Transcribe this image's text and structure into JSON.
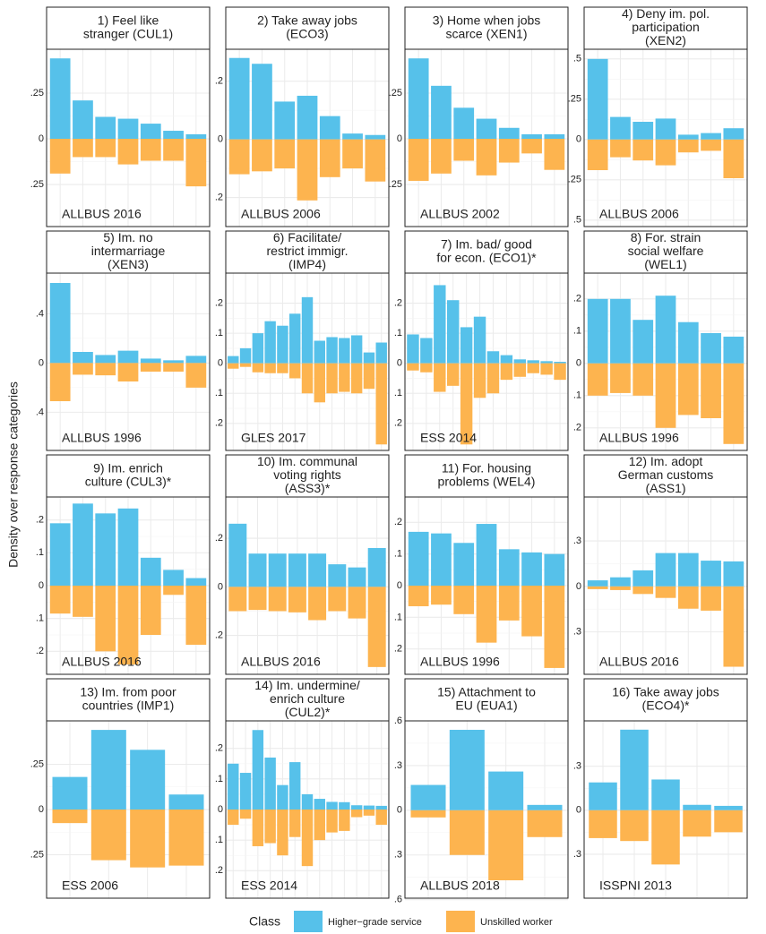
{
  "y_axis_label": "Density over response categories",
  "legend": {
    "title": "Class"
  },
  "chart_data": [
    {
      "type": "bar",
      "title": [
        "1) Feel like",
        "stranger (CUL1)"
      ],
      "annotation": "ALLBUS 2016",
      "categories": [
        null,
        null,
        null,
        null,
        null,
        null,
        null
      ],
      "series": [
        {
          "name": "Higher−grade service",
          "color": "#56c1ea",
          "values": [
            0.44,
            0.21,
            0.12,
            0.11,
            0.083,
            0.044,
            0.025
          ]
        },
        {
          "name": "Unskilled worker",
          "color": "#fdb44f",
          "values": [
            -0.19,
            -0.1,
            -0.1,
            -0.14,
            -0.12,
            -0.12,
            -0.26
          ]
        }
      ],
      "ylim": [
        -0.48,
        0.49
      ],
      "yticks": [
        {
          "value": -0.25,
          "label": ".25"
        },
        0,
        {
          "value": 0.25,
          "label": ".25"
        }
      ]
    },
    {
      "type": "bar",
      "title": [
        "2) Take away jobs",
        "(ECO3)"
      ],
      "annotation": "ALLBUS 2006",
      "categories": [
        null,
        null,
        null,
        null,
        null,
        null,
        null
      ],
      "series": [
        {
          "name": "Higher−grade service",
          "color": "#56c1ea",
          "values": [
            0.28,
            0.26,
            0.13,
            0.15,
            0.08,
            0.02,
            0.015
          ]
        },
        {
          "name": "Unskilled worker",
          "color": "#fdb44f",
          "values": [
            -0.12,
            -0.11,
            -0.1,
            -0.21,
            -0.13,
            -0.1,
            -0.145
          ]
        }
      ],
      "ylim": [
        -0.3,
        0.31
      ],
      "yticks": [
        {
          "value": -0.2,
          "label": ".2"
        },
        0,
        {
          "value": 0.2,
          "label": ".2"
        }
      ]
    },
    {
      "type": "bar",
      "title": [
        "3) Home when jobs",
        "scarce (XEN1)"
      ],
      "annotation": "ALLBUS 2002",
      "categories": [
        null,
        null,
        null,
        null,
        null,
        null,
        null
      ],
      "series": [
        {
          "name": "Higher−grade service",
          "color": "#56c1ea",
          "values": [
            0.44,
            0.29,
            0.17,
            0.11,
            0.06,
            0.025,
            0.025
          ]
        },
        {
          "name": "Unskilled worker",
          "color": "#fdb44f",
          "values": [
            -0.23,
            -0.19,
            -0.12,
            -0.2,
            -0.13,
            -0.08,
            -0.17
          ]
        }
      ],
      "ylim": [
        -0.48,
        0.49
      ],
      "yticks": [
        {
          "value": -0.25,
          "label": ".25"
        },
        0,
        {
          "value": 0.25,
          "label": ".25"
        }
      ]
    },
    {
      "type": "bar",
      "title": [
        "4) Deny im. pol.",
        "participation",
        "(XEN2)"
      ],
      "annotation": "ALLBUS 2006",
      "categories": [
        null,
        null,
        null,
        null,
        null,
        null,
        null
      ],
      "series": [
        {
          "name": "Higher−grade service",
          "color": "#56c1ea",
          "values": [
            0.5,
            0.14,
            0.11,
            0.13,
            0.03,
            0.04,
            0.07
          ]
        },
        {
          "name": "Unskilled worker",
          "color": "#fdb44f",
          "values": [
            -0.19,
            -0.11,
            -0.13,
            -0.16,
            -0.08,
            -0.07,
            -0.24
          ]
        }
      ],
      "ylim": [
        -0.54,
        0.56
      ],
      "yticks": [
        {
          "value": -0.5,
          "label": ".5"
        },
        {
          "value": -0.25,
          "label": ".25"
        },
        0,
        {
          "value": 0.25,
          "label": ".25"
        },
        {
          "value": 0.5,
          "label": ".5"
        }
      ]
    },
    {
      "type": "bar",
      "title": [
        "5) Im. no",
        "intermarriage",
        "(XEN3)"
      ],
      "annotation": "ALLBUS 1996",
      "categories": [
        null,
        null,
        null,
        null,
        null,
        null,
        null
      ],
      "series": [
        {
          "name": "Higher−grade service",
          "color": "#56c1ea",
          "values": [
            0.65,
            0.09,
            0.065,
            0.1,
            0.036,
            0.022,
            0.058
          ]
        },
        {
          "name": "Unskilled worker",
          "color": "#fdb44f",
          "values": [
            -0.31,
            -0.095,
            -0.1,
            -0.15,
            -0.07,
            -0.07,
            -0.2
          ]
        }
      ],
      "ylim": [
        -0.71,
        0.73
      ],
      "yticks": [
        {
          "value": -0.4,
          "label": ".4"
        },
        0,
        {
          "value": 0.4,
          "label": ".4"
        }
      ]
    },
    {
      "type": "bar",
      "title": [
        "6) Facilitate/",
        "restrict immigr.",
        "(IMP4)"
      ],
      "annotation": "GLES 2017",
      "categories": [
        null,
        null,
        null,
        null,
        null,
        null,
        null,
        null,
        null,
        null,
        null,
        null,
        null
      ],
      "series": [
        {
          "name": "Higher−grade service",
          "color": "#56c1ea",
          "values": [
            0.024,
            0.05,
            0.1,
            0.14,
            0.125,
            0.165,
            0.22,
            0.075,
            0.087,
            0.084,
            0.093,
            0.036,
            0.069
          ]
        },
        {
          "name": "Unskilled worker",
          "color": "#fdb44f",
          "values": [
            -0.018,
            -0.012,
            -0.03,
            -0.033,
            -0.033,
            -0.05,
            -0.1,
            -0.13,
            -0.1,
            -0.095,
            -0.1,
            -0.085,
            -0.27
          ]
        }
      ],
      "ylim": [
        -0.29,
        0.3
      ],
      "yticks": [
        {
          "value": -0.2,
          "label": ".2"
        },
        {
          "value": -0.1,
          "label": ".1"
        },
        0,
        {
          "value": 0.1,
          "label": ".1"
        },
        {
          "value": 0.2,
          "label": ".2"
        }
      ]
    },
    {
      "type": "bar",
      "title": [
        "7) Im. bad/ good",
        "for econ. (ECO1)*"
      ],
      "annotation": "ESS 2014",
      "categories": [
        null,
        null,
        null,
        null,
        null,
        null,
        null,
        null,
        null,
        null,
        null,
        null
      ],
      "series": [
        {
          "name": "Higher−grade service",
          "color": "#56c1ea",
          "values": [
            0.096,
            0.084,
            0.26,
            0.21,
            0.12,
            0.155,
            0.04,
            0.027,
            0.013,
            0.01,
            0.007,
            0.005
          ]
        },
        {
          "name": "Unskilled worker",
          "color": "#fdb44f",
          "values": [
            -0.024,
            -0.03,
            -0.095,
            -0.075,
            -0.27,
            -0.115,
            -0.1,
            -0.055,
            -0.045,
            -0.033,
            -0.038,
            -0.055
          ]
        }
      ],
      "ylim": [
        -0.29,
        0.3
      ],
      "yticks": [
        {
          "value": -0.2,
          "label": ".2"
        },
        {
          "value": -0.1,
          "label": ".1"
        },
        0,
        {
          "value": 0.1,
          "label": ".1"
        },
        {
          "value": 0.2,
          "label": ".2"
        }
      ]
    },
    {
      "type": "bar",
      "title": [
        "8) For. strain",
        "social welfare",
        "(WEL1)"
      ],
      "annotation": "ALLBUS 1996",
      "categories": [
        null,
        null,
        null,
        null,
        null,
        null,
        null
      ],
      "series": [
        {
          "name": "Higher−grade service",
          "color": "#56c1ea",
          "values": [
            0.2,
            0.2,
            0.135,
            0.21,
            0.128,
            0.094,
            0.083
          ]
        },
        {
          "name": "Unskilled worker",
          "color": "#fdb44f",
          "values": [
            -0.1,
            -0.092,
            -0.1,
            -0.2,
            -0.16,
            -0.17,
            -0.25
          ]
        }
      ],
      "ylim": [
        -0.27,
        0.28
      ],
      "yticks": [
        {
          "value": -0.2,
          "label": ".2"
        },
        {
          "value": -0.1,
          "label": ".1"
        },
        0,
        {
          "value": 0.1,
          "label": ".1"
        },
        {
          "value": 0.2,
          "label": ".2"
        }
      ]
    },
    {
      "type": "bar",
      "title": [
        "9) Im. enrich",
        "culture (CUL3)*"
      ],
      "annotation": "ALLBUS 2016",
      "categories": [
        null,
        null,
        null,
        null,
        null,
        null,
        null
      ],
      "series": [
        {
          "name": "Higher−grade service",
          "color": "#56c1ea",
          "values": [
            0.19,
            0.25,
            0.22,
            0.235,
            0.085,
            0.048,
            0.023
          ]
        },
        {
          "name": "Unskilled worker",
          "color": "#fdb44f",
          "values": [
            -0.085,
            -0.095,
            -0.2,
            -0.24,
            -0.15,
            -0.028,
            -0.18
          ]
        }
      ],
      "ylim": [
        -0.27,
        0.27
      ],
      "yticks": [
        {
          "value": -0.2,
          "label": ".2"
        },
        {
          "value": -0.1,
          "label": ".1"
        },
        0,
        {
          "value": 0.1,
          "label": ".1"
        },
        {
          "value": 0.2,
          "label": ".2"
        }
      ]
    },
    {
      "type": "bar",
      "title": [
        "10) Im. communal",
        "voting rights",
        "(ASS3)*"
      ],
      "annotation": "ALLBUS 2016",
      "categories": [
        null,
        null,
        null,
        null,
        null,
        null,
        null,
        null
      ],
      "series": [
        {
          "name": "Higher−grade service",
          "color": "#56c1ea",
          "values": [
            0.26,
            0.137,
            0.137,
            0.137,
            0.137,
            0.093,
            0.08,
            0.16
          ]
        },
        {
          "name": "Unskilled worker",
          "color": "#fdb44f",
          "values": [
            -0.1,
            -0.095,
            -0.1,
            -0.105,
            -0.137,
            -0.1,
            -0.13,
            -0.33
          ]
        }
      ],
      "ylim": [
        -0.36,
        0.37
      ],
      "yticks": [
        {
          "value": -0.2,
          "label": ".2"
        },
        0,
        {
          "value": 0.2,
          "label": ".2"
        }
      ]
    },
    {
      "type": "bar",
      "title": [
        "11) For. housing",
        "problems (WEL4)"
      ],
      "annotation": "ALLBUS 1996",
      "categories": [
        null,
        null,
        null,
        null,
        null,
        null,
        null
      ],
      "series": [
        {
          "name": "Higher−grade service",
          "color": "#56c1ea",
          "values": [
            0.17,
            0.165,
            0.135,
            0.195,
            0.115,
            0.105,
            0.1
          ]
        },
        {
          "name": "Unskilled worker",
          "color": "#fdb44f",
          "values": [
            -0.065,
            -0.06,
            -0.09,
            -0.18,
            -0.11,
            -0.16,
            -0.26
          ]
        }
      ],
      "ylim": [
        -0.28,
        0.28
      ],
      "yticks": [
        {
          "value": -0.2,
          "label": ".2"
        },
        {
          "value": -0.1,
          "label": ".1"
        },
        0,
        {
          "value": 0.1,
          "label": ".1"
        },
        {
          "value": 0.2,
          "label": ".2"
        }
      ]
    },
    {
      "type": "bar",
      "title": [
        "12) Im. adopt",
        "German customs",
        "(ASS1)"
      ],
      "annotation": "ALLBUS 2016",
      "categories": [
        null,
        null,
        null,
        null,
        null,
        null,
        null
      ],
      "series": [
        {
          "name": "Higher−grade service",
          "color": "#56c1ea",
          "values": [
            0.04,
            0.06,
            0.106,
            0.22,
            0.22,
            0.17,
            0.165
          ]
        },
        {
          "name": "Unskilled worker",
          "color": "#fdb44f",
          "values": [
            -0.018,
            -0.024,
            -0.05,
            -0.076,
            -0.147,
            -0.16,
            -0.53
          ]
        }
      ],
      "ylim": [
        -0.58,
        0.59
      ],
      "yticks": [
        {
          "value": -0.3,
          "label": ".3"
        },
        0,
        {
          "value": 0.3,
          "label": ".3"
        }
      ]
    },
    {
      "type": "bar",
      "title": [
        "13) Im. from poor",
        "countries (IMP1)"
      ],
      "annotation": "ESS 2006",
      "categories": [
        null,
        null,
        null,
        null
      ],
      "series": [
        {
          "name": "Higher−grade service",
          "color": "#56c1ea",
          "values": [
            0.18,
            0.44,
            0.33,
            0.083
          ]
        },
        {
          "name": "Unskilled worker",
          "color": "#fdb44f",
          "values": [
            -0.075,
            -0.28,
            -0.32,
            -0.31
          ]
        }
      ],
      "ylim": [
        -0.49,
        0.49
      ],
      "yticks": [
        {
          "value": -0.25,
          "label": ".25"
        },
        0,
        {
          "value": 0.25,
          "label": ".25"
        }
      ]
    },
    {
      "type": "bar",
      "title": [
        "14) Im. undermine/",
        "enrich culture",
        "(CUL2)*"
      ],
      "annotation": "ESS 2014",
      "categories": [
        null,
        null,
        null,
        null,
        null,
        null,
        null,
        null,
        null,
        null,
        null,
        null,
        null
      ],
      "series": [
        {
          "name": "Higher−grade service",
          "color": "#56c1ea",
          "values": [
            0.15,
            0.12,
            0.26,
            0.17,
            0.08,
            0.155,
            0.05,
            0.035,
            0.025,
            0.024,
            0.014,
            0.013,
            0.012
          ]
        },
        {
          "name": "Unskilled worker",
          "color": "#fdb44f",
          "values": [
            -0.05,
            -0.03,
            -0.12,
            -0.11,
            -0.15,
            -0.09,
            -0.185,
            -0.1,
            -0.075,
            -0.07,
            -0.025,
            -0.02,
            -0.05
          ]
        }
      ],
      "ylim": [
        -0.29,
        0.29
      ],
      "yticks": [
        {
          "value": -0.2,
          "label": ".2"
        },
        {
          "value": -0.1,
          "label": ".1"
        },
        0,
        {
          "value": 0.1,
          "label": ".1"
        },
        {
          "value": 0.2,
          "label": ".2"
        }
      ]
    },
    {
      "type": "bar",
      "title": [
        "15) Attachment to",
        "EU (EUA1)"
      ],
      "annotation": "ALLBUS 2018",
      "categories": [
        null,
        null,
        null,
        null
      ],
      "series": [
        {
          "name": "Higher−grade service",
          "color": "#56c1ea",
          "values": [
            0.17,
            0.54,
            0.26,
            0.036
          ]
        },
        {
          "name": "Unskilled worker",
          "color": "#fdb44f",
          "values": [
            -0.048,
            -0.3,
            -0.47,
            -0.18
          ]
        }
      ],
      "ylim": [
        -0.59,
        0.6
      ],
      "yticks": [
        {
          "value": -0.6,
          "label": ".6"
        },
        {
          "value": -0.3,
          "label": ".3"
        },
        0,
        {
          "value": 0.3,
          "label": ".3"
        },
        {
          "value": 0.6,
          "label": ".6"
        }
      ]
    },
    {
      "type": "bar",
      "title": [
        "16) Take away jobs",
        "(ECO4)*"
      ],
      "annotation": "ISSPNI 2013",
      "categories": [
        null,
        null,
        null,
        null,
        null
      ],
      "series": [
        {
          "name": "Higher−grade service",
          "color": "#56c1ea",
          "values": [
            0.19,
            0.55,
            0.21,
            0.037,
            0.03
          ]
        },
        {
          "name": "Unskilled worker",
          "color": "#fdb44f",
          "values": [
            -0.19,
            -0.21,
            -0.37,
            -0.18,
            -0.15
          ]
        }
      ],
      "ylim": [
        -0.6,
        0.61
      ],
      "yticks": [
        {
          "value": -0.3,
          "label": ".3"
        },
        0,
        {
          "value": 0.3,
          "label": ".3"
        }
      ]
    }
  ]
}
